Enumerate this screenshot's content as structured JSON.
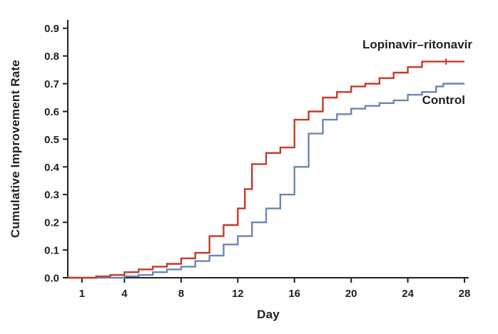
{
  "figure": {
    "background": "#ffffff",
    "axis_color": "#231f20",
    "text_color": "#231f20"
  },
  "chart_data": {
    "type": "line",
    "variant": "step",
    "title": "",
    "xlabel": "Day",
    "ylabel": "Cumulative Improvement Rate",
    "xlim": [
      0,
      28.3
    ],
    "ylim": [
      0,
      0.93
    ],
    "x_ticks": [
      1,
      4,
      8,
      12,
      16,
      20,
      24,
      28
    ],
    "y_ticks": [
      0,
      0.1,
      0.2,
      0.3,
      0.4,
      0.5,
      0.6,
      0.7,
      0.8,
      0.9
    ],
    "y_tick_labels": [
      "0.0",
      "0.1",
      "0.2",
      "0.3",
      "0.4",
      "0.5",
      "0.6",
      "0.7",
      "0.8",
      "0.9"
    ],
    "grid": false,
    "legend_position": "inline-annotations",
    "series": [
      {
        "name": "Lopinavir–ritonavir",
        "color": "#c63a2b",
        "points": [
          [
            0,
            0
          ],
          [
            2,
            0.005
          ],
          [
            3,
            0.01
          ],
          [
            4,
            0.02
          ],
          [
            5,
            0.03
          ],
          [
            6,
            0.04
          ],
          [
            7,
            0.05
          ],
          [
            8,
            0.07
          ],
          [
            9,
            0.09
          ],
          [
            10,
            0.15
          ],
          [
            11,
            0.19
          ],
          [
            12,
            0.25
          ],
          [
            12.5,
            0.32
          ],
          [
            13,
            0.41
          ],
          [
            14,
            0.45
          ],
          [
            15,
            0.47
          ],
          [
            16,
            0.57
          ],
          [
            17,
            0.6
          ],
          [
            18,
            0.65
          ],
          [
            19,
            0.67
          ],
          [
            20,
            0.69
          ],
          [
            21,
            0.7
          ],
          [
            22,
            0.72
          ],
          [
            23,
            0.74
          ],
          [
            24,
            0.76
          ],
          [
            25,
            0.78
          ],
          [
            28,
            0.78
          ]
        ]
      },
      {
        "name": "Control",
        "color": "#6c86b5",
        "points": [
          [
            0,
            0
          ],
          [
            4,
            0.005
          ],
          [
            5,
            0.01
          ],
          [
            6,
            0.02
          ],
          [
            7,
            0.03
          ],
          [
            8,
            0.04
          ],
          [
            9,
            0.06
          ],
          [
            10,
            0.08
          ],
          [
            11,
            0.12
          ],
          [
            12,
            0.15
          ],
          [
            13,
            0.2
          ],
          [
            14,
            0.25
          ],
          [
            15,
            0.3
          ],
          [
            16,
            0.4
          ],
          [
            17,
            0.52
          ],
          [
            18,
            0.57
          ],
          [
            19,
            0.59
          ],
          [
            20,
            0.61
          ],
          [
            21,
            0.62
          ],
          [
            22,
            0.63
          ],
          [
            23,
            0.64
          ],
          [
            24,
            0.66
          ],
          [
            25,
            0.67
          ],
          [
            26,
            0.69
          ],
          [
            26.5,
            0.7
          ],
          [
            28,
            0.7
          ]
        ]
      }
    ],
    "censor_marks": [
      {
        "series_index": 0,
        "day": 26.7,
        "rate": 0.78
      }
    ]
  }
}
